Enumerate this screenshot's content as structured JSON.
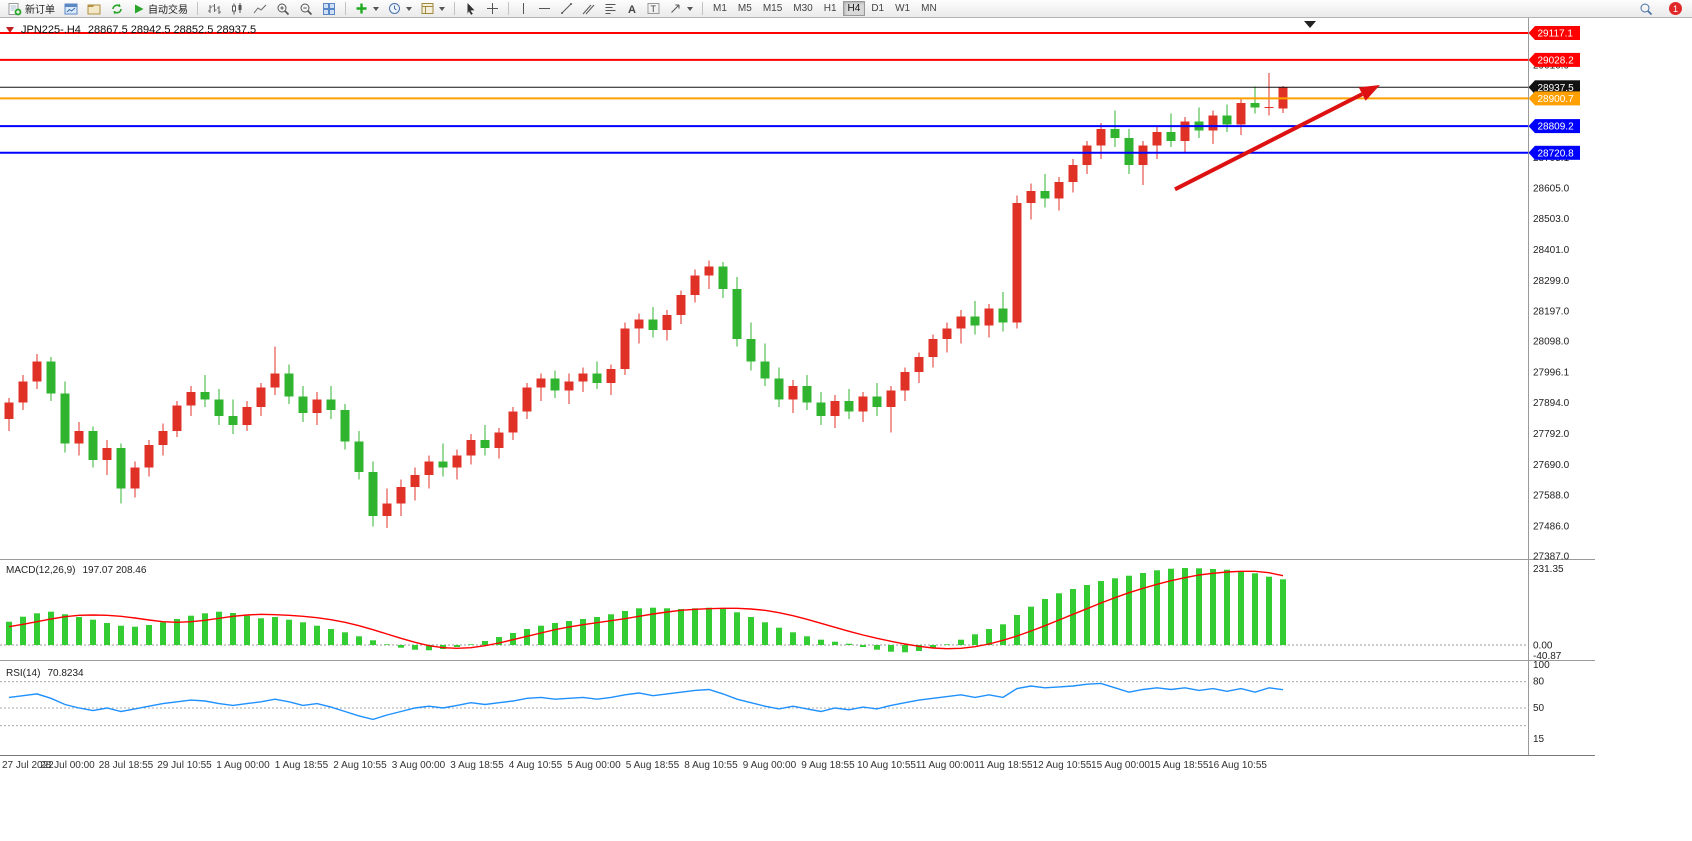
{
  "toolbar": {
    "new_order_label": "新订单",
    "autotrading_label": "自动交易",
    "timeframes": [
      "M1",
      "M5",
      "M15",
      "M30",
      "H1",
      "H4",
      "D1",
      "W1",
      "MN"
    ],
    "active_timeframe": "H4",
    "notification_count": "1"
  },
  "chart": {
    "title_symbol": "JPN225-.H4",
    "title_ohlc": "28867.5 28942.5 28852.5 28937.5"
  },
  "chart_data": {
    "type": "candlestick",
    "symbol": "JPN225-",
    "timeframe": "H4",
    "ohlc_current": {
      "open": 28867.5,
      "high": 28942.5,
      "low": 28852.5,
      "close": 28937.5
    },
    "candle_up_color": "#e03127",
    "candle_down_color": "#30b430",
    "price_axis_labels": [
      "29010.9",
      "28909.0",
      "28807.0",
      "28705.1",
      "28605.0",
      "28503.0",
      "28401.0",
      "28299.0",
      "28197.0",
      "28098.0",
      "27996.1",
      "27894.0",
      "27792.0",
      "27690.0",
      "27588.0",
      "27486.0",
      "27387.0"
    ],
    "time_axis_labels": [
      "27 Jul 2022",
      "28 Jul 00:00",
      "28 Jul 18:55",
      "29 Jul 10:55",
      "1 Aug 00:00",
      "1 Aug 18:55",
      "2 Aug 10:55",
      "3 Aug 00:00",
      "3 Aug 18:55",
      "4 Aug 10:55",
      "5 Aug 00:00",
      "5 Aug 18:55",
      "8 Aug 10:55",
      "9 Aug 00:00",
      "9 Aug 18:55",
      "10 Aug 10:55",
      "11 Aug 00:00",
      "11 Aug 18:55",
      "12 Aug 10:55",
      "15 Aug 00:00",
      "15 Aug 18:55",
      "16 Aug 10:55"
    ],
    "horizontal_lines": [
      {
        "price": 29117.1,
        "color": "#ff0000",
        "width": 2,
        "label": "29117.1"
      },
      {
        "price": 29028.2,
        "color": "#ff0000",
        "width": 2,
        "label": "29028.2"
      },
      {
        "price": 28937.5,
        "color": "#111111",
        "width": 1,
        "label": "28937.5",
        "role": "current-price"
      },
      {
        "price": 28900.7,
        "color": "#ffa000",
        "width": 2,
        "label": "28900.7"
      },
      {
        "price": 28809.2,
        "color": "#0000ff",
        "width": 2,
        "label": "28809.2"
      },
      {
        "price": 28720.8,
        "color": "#0000ff",
        "width": 2,
        "label": "28720.8"
      }
    ],
    "trend_arrow": {
      "from_price": 28600,
      "to_price": 28945,
      "color": "#dd1111"
    },
    "candles": [
      [
        27840,
        27910,
        27800,
        27895
      ],
      [
        27895,
        27985,
        27870,
        27965
      ],
      [
        27965,
        28055,
        27940,
        28030
      ],
      [
        28030,
        28045,
        27900,
        27925
      ],
      [
        27925,
        27965,
        27730,
        27760
      ],
      [
        27760,
        27830,
        27720,
        27800
      ],
      [
        27800,
        27815,
        27680,
        27705
      ],
      [
        27705,
        27770,
        27655,
        27745
      ],
      [
        27745,
        27760,
        27560,
        27610
      ],
      [
        27610,
        27700,
        27580,
        27680
      ],
      [
        27680,
        27770,
        27650,
        27755
      ],
      [
        27755,
        27825,
        27720,
        27800
      ],
      [
        27800,
        27900,
        27780,
        27885
      ],
      [
        27885,
        27950,
        27850,
        27930
      ],
      [
        27930,
        27985,
        27880,
        27905
      ],
      [
        27905,
        27940,
        27820,
        27850
      ],
      [
        27850,
        27905,
        27790,
        27820
      ],
      [
        27820,
        27900,
        27800,
        27880
      ],
      [
        27880,
        27960,
        27850,
        27945
      ],
      [
        27945,
        28080,
        27920,
        27990
      ],
      [
        27990,
        28020,
        27890,
        27915
      ],
      [
        27915,
        27950,
        27830,
        27860
      ],
      [
        27860,
        27930,
        27820,
        27905
      ],
      [
        27905,
        27950,
        27840,
        27870
      ],
      [
        27870,
        27890,
        27740,
        27765
      ],
      [
        27765,
        27800,
        27640,
        27665
      ],
      [
        27665,
        27700,
        27485,
        27520
      ],
      [
        27520,
        27610,
        27480,
        27560
      ],
      [
        27560,
        27640,
        27520,
        27615
      ],
      [
        27615,
        27680,
        27570,
        27655
      ],
      [
        27655,
        27720,
        27610,
        27700
      ],
      [
        27700,
        27760,
        27650,
        27680
      ],
      [
        27680,
        27740,
        27640,
        27720
      ],
      [
        27720,
        27790,
        27690,
        27770
      ],
      [
        27770,
        27820,
        27720,
        27745
      ],
      [
        27745,
        27810,
        27710,
        27795
      ],
      [
        27795,
        27880,
        27770,
        27865
      ],
      [
        27865,
        27960,
        27840,
        27945
      ],
      [
        27945,
        27990,
        27900,
        27975
      ],
      [
        27975,
        28000,
        27910,
        27935
      ],
      [
        27935,
        27990,
        27890,
        27965
      ],
      [
        27965,
        28010,
        27930,
        27990
      ],
      [
        27990,
        28030,
        27940,
        27960
      ],
      [
        27960,
        28020,
        27920,
        28005
      ],
      [
        28005,
        28160,
        27985,
        28140
      ],
      [
        28140,
        28190,
        28090,
        28170
      ],
      [
        28170,
        28210,
        28110,
        28135
      ],
      [
        28135,
        28200,
        28100,
        28185
      ],
      [
        28185,
        28265,
        28155,
        28250
      ],
      [
        28250,
        28335,
        28225,
        28315
      ],
      [
        28315,
        28365,
        28270,
        28345
      ],
      [
        28345,
        28360,
        28240,
        28270
      ],
      [
        28270,
        28310,
        28080,
        28105
      ],
      [
        28105,
        28160,
        28000,
        28030
      ],
      [
        28030,
        28090,
        27950,
        27975
      ],
      [
        27975,
        28010,
        27880,
        27905
      ],
      [
        27905,
        27970,
        27860,
        27950
      ],
      [
        27950,
        27985,
        27870,
        27895
      ],
      [
        27895,
        27930,
        27820,
        27850
      ],
      [
        27850,
        27920,
        27810,
        27900
      ],
      [
        27900,
        27940,
        27840,
        27865
      ],
      [
        27865,
        27930,
        27830,
        27915
      ],
      [
        27915,
        27960,
        27850,
        27880
      ],
      [
        27880,
        27950,
        27795,
        27935
      ],
      [
        27935,
        28010,
        27900,
        27995
      ],
      [
        27995,
        28060,
        27960,
        28045
      ],
      [
        28045,
        28120,
        28010,
        28105
      ],
      [
        28105,
        28160,
        28060,
        28140
      ],
      [
        28140,
        28200,
        28090,
        28180
      ],
      [
        28180,
        28230,
        28120,
        28150
      ],
      [
        28150,
        28220,
        28110,
        28205
      ],
      [
        28205,
        28260,
        28130,
        28160
      ],
      [
        28160,
        28580,
        28140,
        28555
      ],
      [
        28555,
        28620,
        28500,
        28595
      ],
      [
        28595,
        28650,
        28540,
        28570
      ],
      [
        28570,
        28640,
        28530,
        28625
      ],
      [
        28625,
        28700,
        28590,
        28680
      ],
      [
        28680,
        28760,
        28650,
        28745
      ],
      [
        28745,
        28820,
        28700,
        28800
      ],
      [
        28800,
        28860,
        28740,
        28770
      ],
      [
        28770,
        28800,
        28650,
        28680
      ],
      [
        28680,
        28760,
        28615,
        28745
      ],
      [
        28745,
        28810,
        28700,
        28790
      ],
      [
        28790,
        28850,
        28740,
        28760
      ],
      [
        28760,
        28840,
        28720,
        28825
      ],
      [
        28825,
        28870,
        28770,
        28795
      ],
      [
        28795,
        28860,
        28750,
        28845
      ],
      [
        28845,
        28880,
        28790,
        28815
      ],
      [
        28815,
        28900,
        28780,
        28885
      ],
      [
        28885,
        28940,
        28850,
        28870
      ],
      [
        28870,
        28985,
        28845,
        28872
      ],
      [
        28867.5,
        28942.5,
        28852.5,
        28937.5
      ]
    ],
    "indicators": {
      "macd": {
        "label": "MACD(12,26,9)",
        "display_values": "197.07 208.46",
        "axis_labels": [
          "231.35",
          "0.00",
          "-40.87"
        ],
        "histogram_color": "#33cc33",
        "signal_color": "#ff0000",
        "histogram": [
          70,
          85,
          95,
          100,
          92,
          84,
          76,
          66,
          58,
          55,
          60,
          68,
          78,
          88,
          95,
          100,
          96,
          88,
          80,
          84,
          76,
          68,
          58,
          48,
          38,
          26,
          14,
          2,
          -8,
          -14,
          -16,
          -12,
          -6,
          2,
          12,
          24,
          36,
          48,
          58,
          66,
          72,
          78,
          84,
          92,
          102,
          110,
          112,
          110,
          108,
          110,
          112,
          108,
          98,
          84,
          68,
          52,
          38,
          26,
          16,
          10,
          4,
          -6,
          -14,
          -20,
          -22,
          -18,
          -10,
          2,
          16,
          32,
          48,
          62,
          90,
          115,
          138,
          155,
          168,
          180,
          192,
          200,
          208,
          216,
          224,
          229,
          231,
          230,
          228,
          226,
          222,
          215,
          205,
          197
        ],
        "signal": [
          55,
          62,
          70,
          78,
          85,
          89,
          90,
          89,
          86,
          81,
          75,
          70,
          68,
          70,
          74,
          80,
          86,
          90,
          92,
          91,
          89,
          86,
          82,
          76,
          68,
          58,
          46,
          33,
          20,
          8,
          -2,
          -8,
          -10,
          -8,
          -2,
          6,
          16,
          26,
          36,
          46,
          54,
          61,
          67,
          73,
          79,
          86,
          93,
          99,
          104,
          107,
          109,
          110,
          110,
          108,
          104,
          97,
          88,
          77,
          65,
          53,
          41,
          30,
          20,
          11,
          3,
          -4,
          -9,
          -11,
          -10,
          -5,
          3,
          14,
          27,
          42,
          58,
          75,
          92,
          109,
          126,
          142,
          157,
          170,
          182,
          193,
          202,
          210,
          215,
          219,
          221,
          221,
          217,
          208
        ]
      },
      "rsi": {
        "label": "RSI(14)",
        "display_value": "70.8234",
        "axis_labels": [
          "100",
          "80",
          "50",
          "15"
        ],
        "levels": [
          80,
          50,
          30
        ],
        "line_color": "#1e90ff",
        "values": [
          62,
          64,
          66,
          61,
          54,
          50,
          47,
          50,
          46,
          49,
          52,
          55,
          57,
          59,
          58,
          55,
          53,
          55,
          57,
          60,
          57,
          53,
          55,
          51,
          46,
          41,
          37,
          42,
          46,
          50,
          52,
          50,
          53,
          56,
          54,
          56,
          58,
          61,
          62,
          60,
          61,
          62,
          60,
          62,
          65,
          67,
          64,
          66,
          68,
          70,
          71,
          66,
          60,
          56,
          52,
          49,
          52,
          49,
          46,
          50,
          48,
          51,
          49,
          53,
          56,
          59,
          61,
          63,
          65,
          62,
          65,
          62,
          72,
          75,
          73,
          74,
          75,
          77,
          78,
          73,
          68,
          71,
          73,
          71,
          73,
          70,
          72,
          69,
          72,
          68,
          73,
          70.8
        ]
      }
    }
  }
}
